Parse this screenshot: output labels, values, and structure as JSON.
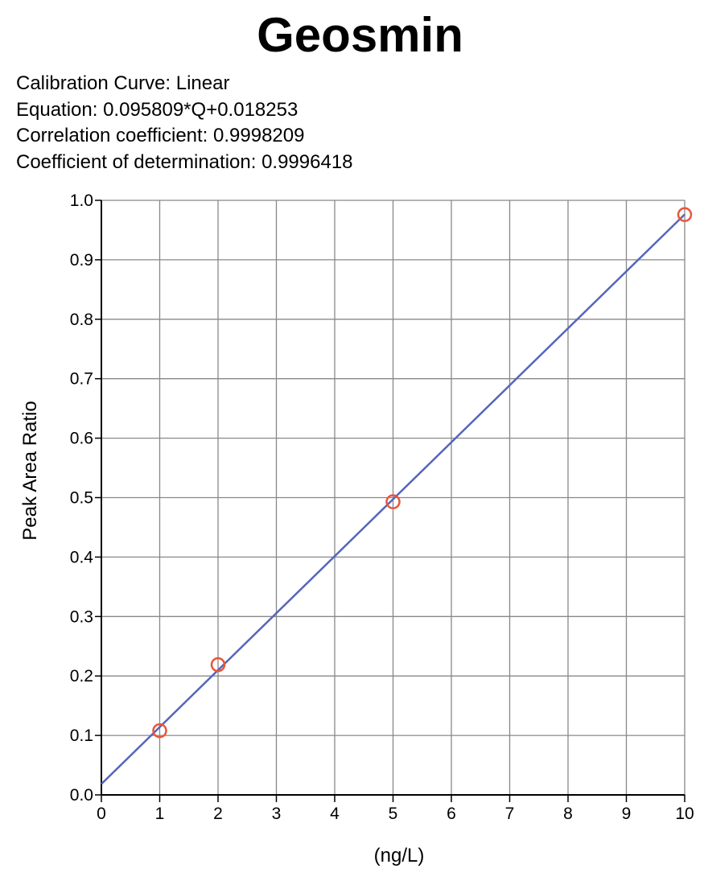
{
  "header": {
    "title": "Geosmin",
    "lines": [
      "Calibration Curve: Linear",
      "Equation: 0.095809*Q+0.018253",
      "Correlation coefficient: 0.9998209",
      "Coefficient of determination: 0.9996418"
    ]
  },
  "chart_data": {
    "type": "scatter",
    "title": "Geosmin",
    "xlabel": "(ng/L)",
    "ylabel": "Peak Area Ratio",
    "xlim": [
      0,
      10
    ],
    "ylim": [
      0,
      1.0
    ],
    "x_ticks": [
      "0",
      "1",
      "2",
      "3",
      "4",
      "5",
      "6",
      "7",
      "8",
      "9",
      "10"
    ],
    "y_ticks": [
      "0.0",
      "0.1",
      "0.2",
      "0.3",
      "0.4",
      "0.5",
      "0.6",
      "0.7",
      "0.8",
      "0.9",
      "1.0"
    ],
    "grid": true,
    "points": [
      {
        "x": 1,
        "y": 0.108
      },
      {
        "x": 2,
        "y": 0.219
      },
      {
        "x": 5,
        "y": 0.493
      },
      {
        "x": 10,
        "y": 0.976
      }
    ],
    "fit_line": {
      "slope": 0.095809,
      "intercept": 0.018253
    },
    "colors": {
      "points": "#e8553a",
      "line": "#5566bb",
      "grid": "#888888",
      "axis": "#000000"
    }
  }
}
